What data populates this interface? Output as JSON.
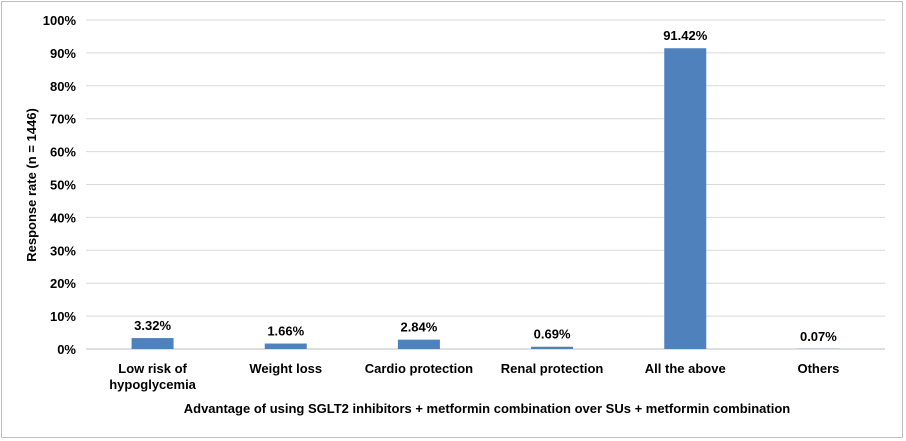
{
  "chart_data": {
    "type": "bar",
    "title": "",
    "categories": [
      [
        "Low risk of",
        "hypoglycemia"
      ],
      [
        "Weight loss"
      ],
      [
        "Cardio protection"
      ],
      [
        "Renal protection"
      ],
      [
        "All the above"
      ],
      [
        "Others"
      ]
    ],
    "values": [
      3.32,
      1.66,
      2.84,
      0.69,
      91.42,
      0.07
    ],
    "data_labels": [
      "3.32%",
      "1.66%",
      "2.84%",
      "0.69%",
      "91.42%",
      "0.07%"
    ],
    "ylim": [
      0,
      100
    ],
    "yticks": [
      0,
      10,
      20,
      30,
      40,
      50,
      60,
      70,
      80,
      90,
      100
    ],
    "ytick_labels": [
      "0%",
      "10%",
      "20%",
      "30%",
      "40%",
      "50%",
      "60%",
      "70%",
      "80%",
      "90%",
      "100%"
    ],
    "xlabel": "Advantage of using SGLT2 inhibitors + metformin combination over SUs + metformin combination",
    "ylabel": "Response rate (n = 1446)",
    "grid": true,
    "legend": "none",
    "colors": {
      "bar": "#4f81bd",
      "grid": "#d9d9d9",
      "axis": "#bfbfbf",
      "text": "#000000"
    }
  }
}
